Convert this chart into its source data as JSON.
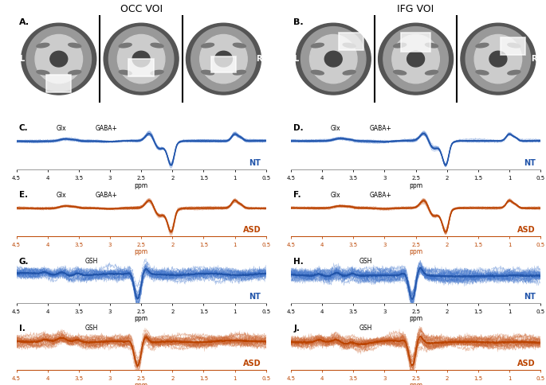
{
  "title_left": "OCC VOI",
  "title_right": "IFG VOI",
  "blue_color": "#2255aa",
  "blue_light": "#4477cc",
  "orange_color": "#bb4400",
  "orange_light": "#cc6633",
  "x_ticks": [
    4.5,
    4.0,
    3.5,
    3.0,
    2.5,
    2.0,
    1.5,
    1.0,
    0.5
  ],
  "x_tick_labels": [
    "4.5",
    "4",
    "3.5",
    "3",
    "2.5",
    "2",
    "1.5",
    "1",
    "0.5"
  ],
  "xlabel": "ppm",
  "height_ratios": [
    1.7,
    0.9,
    0.9,
    0.9,
    0.9
  ],
  "hspace": 0.35,
  "wspace": 0.12
}
